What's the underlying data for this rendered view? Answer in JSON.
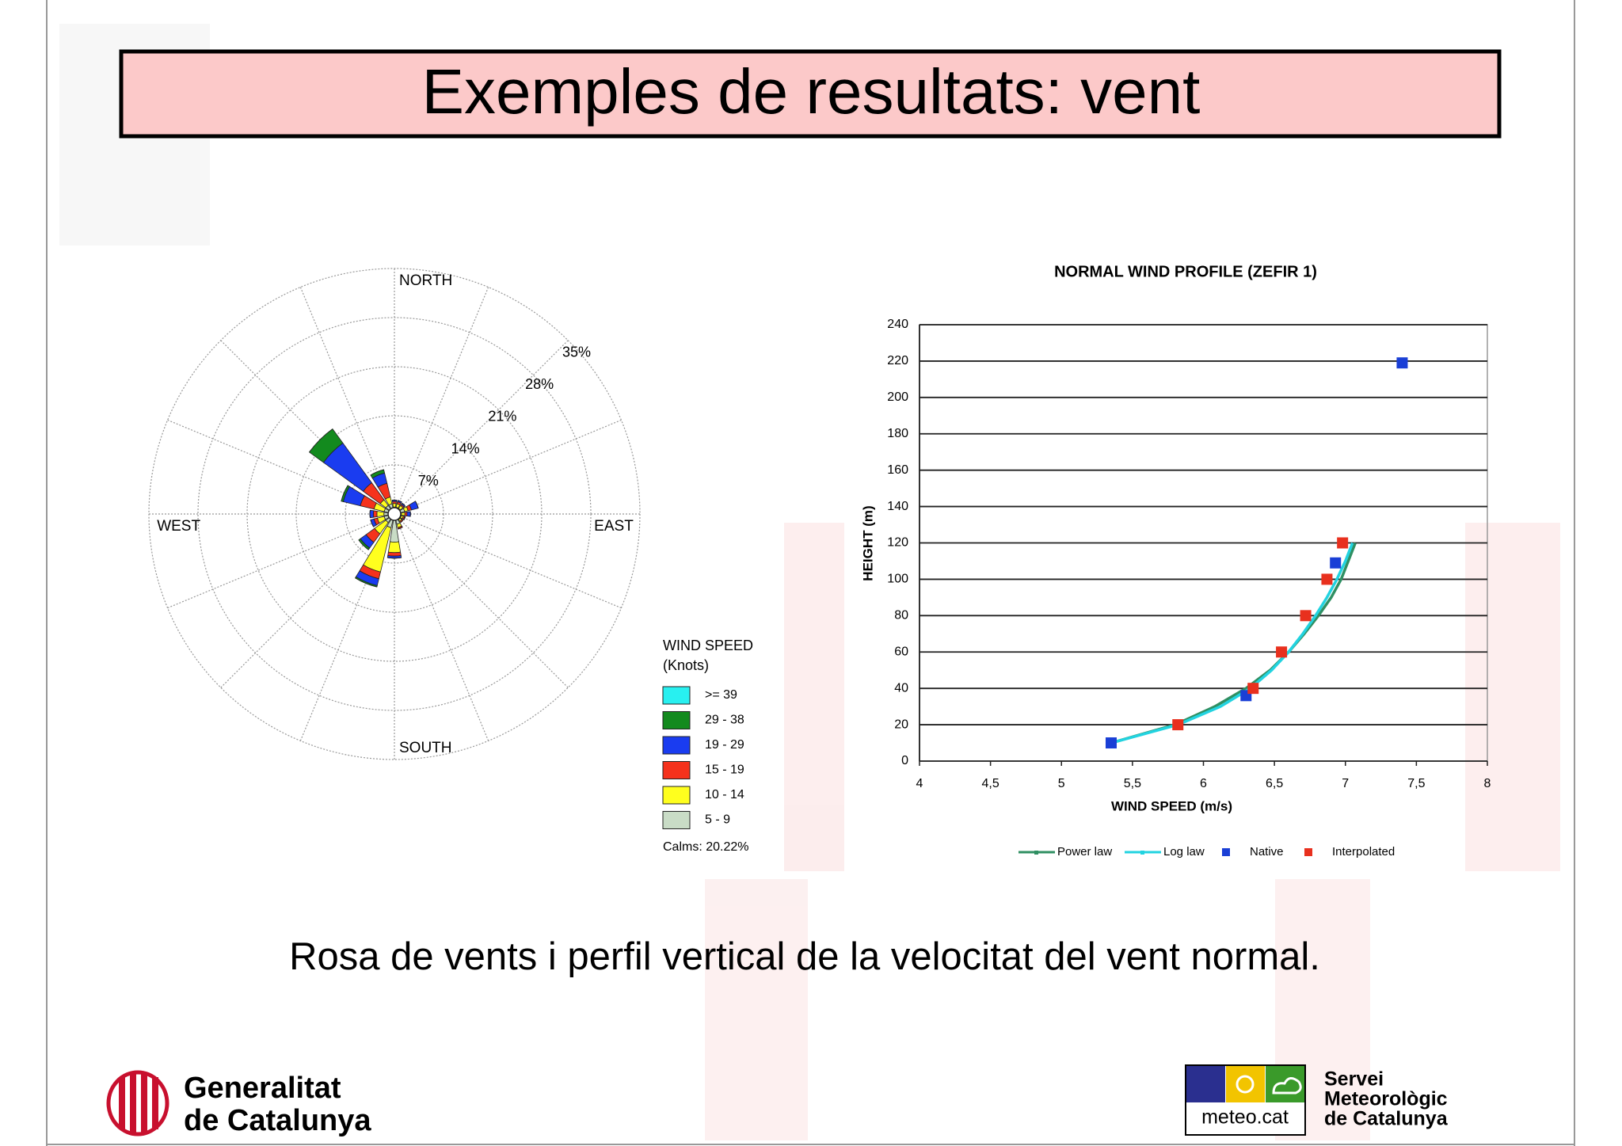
{
  "title": "Exemples de resultats: vent",
  "caption": "Rosa de vents i perfil vertical de la velocitat del vent normal.",
  "footer": {
    "left": [
      "Generalitat",
      "de Catalunya"
    ],
    "logo_label": "meteo.cat",
    "right": [
      "Servei",
      "Meteorològic",
      "de Catalunya"
    ]
  },
  "chart_data": [
    {
      "type": "rose",
      "categories": [
        "NORTH",
        null,
        null,
        null,
        "EAST",
        null,
        null,
        null,
        "SOUTH",
        null,
        null,
        null,
        "WEST",
        null,
        null,
        null
      ],
      "rlim": [
        0,
        35
      ],
      "rticks": [
        {
          "value": 7,
          "label": "7%"
        },
        {
          "value": 14,
          "label": "14%"
        },
        {
          "value": 21,
          "label": "21%"
        },
        {
          "value": 28,
          "label": "28%"
        },
        {
          "value": 35,
          "label": "35%"
        }
      ],
      "series": [
        {
          "name": "5 - 9",
          "color": "#c9dcc6",
          "values": [
            1,
            1,
            1,
            1.5,
            1,
            1,
            1,
            1.5,
            4,
            2,
            1.5,
            1.5,
            1.5,
            1.5,
            1.5,
            1.5
          ]
        },
        {
          "name": "10 - 14",
          "color": "#ffff1e",
          "values": [
            0.5,
            0.5,
            0.5,
            0.5,
            0.5,
            0.3,
            0.3,
            0.5,
            1.5,
            6.5,
            2,
            1,
            1,
            1.5,
            1,
            1
          ]
        },
        {
          "name": "15 - 19",
          "color": "#f5321c",
          "values": [
            0.3,
            0.3,
            0.2,
            0.5,
            0.3,
            0.2,
            0.2,
            0.2,
            0.5,
            1,
            1.5,
            0.5,
            0.5,
            2,
            3,
            2
          ]
        },
        {
          "name": "19 - 29",
          "color": "#1a3cf0",
          "values": [
            0.2,
            0.2,
            0.2,
            1,
            0.5,
            0.1,
            0,
            0,
            0.3,
            1,
            1,
            0.5,
            0.5,
            2.5,
            7,
            1.5
          ]
        },
        {
          "name": "29 - 38",
          "color": "#138a1e",
          "values": [
            0,
            0,
            0,
            0,
            0,
            0,
            0,
            0,
            0,
            0.2,
            0.3,
            0,
            0,
            0.3,
            2.5,
            0.5
          ]
        },
        {
          "name": ">= 39",
          "color": "#28f0f0",
          "values": [
            0,
            0,
            0,
            0,
            0,
            0,
            0,
            0,
            0,
            0,
            0,
            0,
            0,
            0,
            0,
            0
          ]
        }
      ],
      "legend_title": [
        "WIND SPEED",
        "(Knots)"
      ],
      "calms": "Calms: 20.22%"
    },
    {
      "type": "line",
      "title": "NORMAL WIND PROFILE (ZEFIR 1)",
      "xlabel": "WIND SPEED (m/s)",
      "ylabel": "HEIGHT (m)",
      "xlim": [
        4,
        8
      ],
      "xticks": [
        4,
        {
          "value": 4.5,
          "label": "4,5"
        },
        5,
        {
          "value": 5.5,
          "label": "5,5"
        },
        6,
        {
          "value": 6.5,
          "label": "6,5"
        },
        7,
        {
          "value": 7.5,
          "label": "7,5"
        },
        8
      ],
      "ylim": [
        0,
        240
      ],
      "yticks": [
        0,
        20,
        40,
        60,
        80,
        100,
        120,
        140,
        160,
        180,
        200,
        220,
        240
      ],
      "grid": true,
      "series": [
        {
          "name": "Power law",
          "color": "#2f8f62",
          "mark": "line",
          "x": [
            5.35,
            5.8,
            6.08,
            6.3,
            6.47,
            6.6,
            6.71,
            6.81,
            6.9,
            6.97,
            7.02,
            7.07
          ],
          "values": [
            10,
            20,
            30,
            40,
            50,
            60,
            70,
            80,
            90,
            100,
            110,
            120
          ]
        },
        {
          "name": "Log law",
          "color": "#22d3e0",
          "mark": "line",
          "x": [
            5.35,
            5.82,
            6.12,
            6.33,
            6.48,
            6.6,
            6.7,
            6.79,
            6.87,
            6.94,
            7.0,
            7.05
          ],
          "values": [
            10,
            20,
            30,
            40,
            50,
            60,
            70,
            80,
            90,
            100,
            110,
            120
          ]
        },
        {
          "name": "Native",
          "color": "#1a3fd6",
          "mark": "square",
          "x": [
            5.35,
            6.3,
            6.93,
            7.4
          ],
          "values": [
            10,
            36,
            109,
            219
          ]
        },
        {
          "name": "Interpolated",
          "color": "#e8301e",
          "mark": "square",
          "x": [
            5.82,
            6.35,
            6.55,
            6.72,
            6.87,
            6.98
          ],
          "values": [
            20,
            40,
            60,
            80,
            100,
            120
          ]
        }
      ]
    }
  ]
}
